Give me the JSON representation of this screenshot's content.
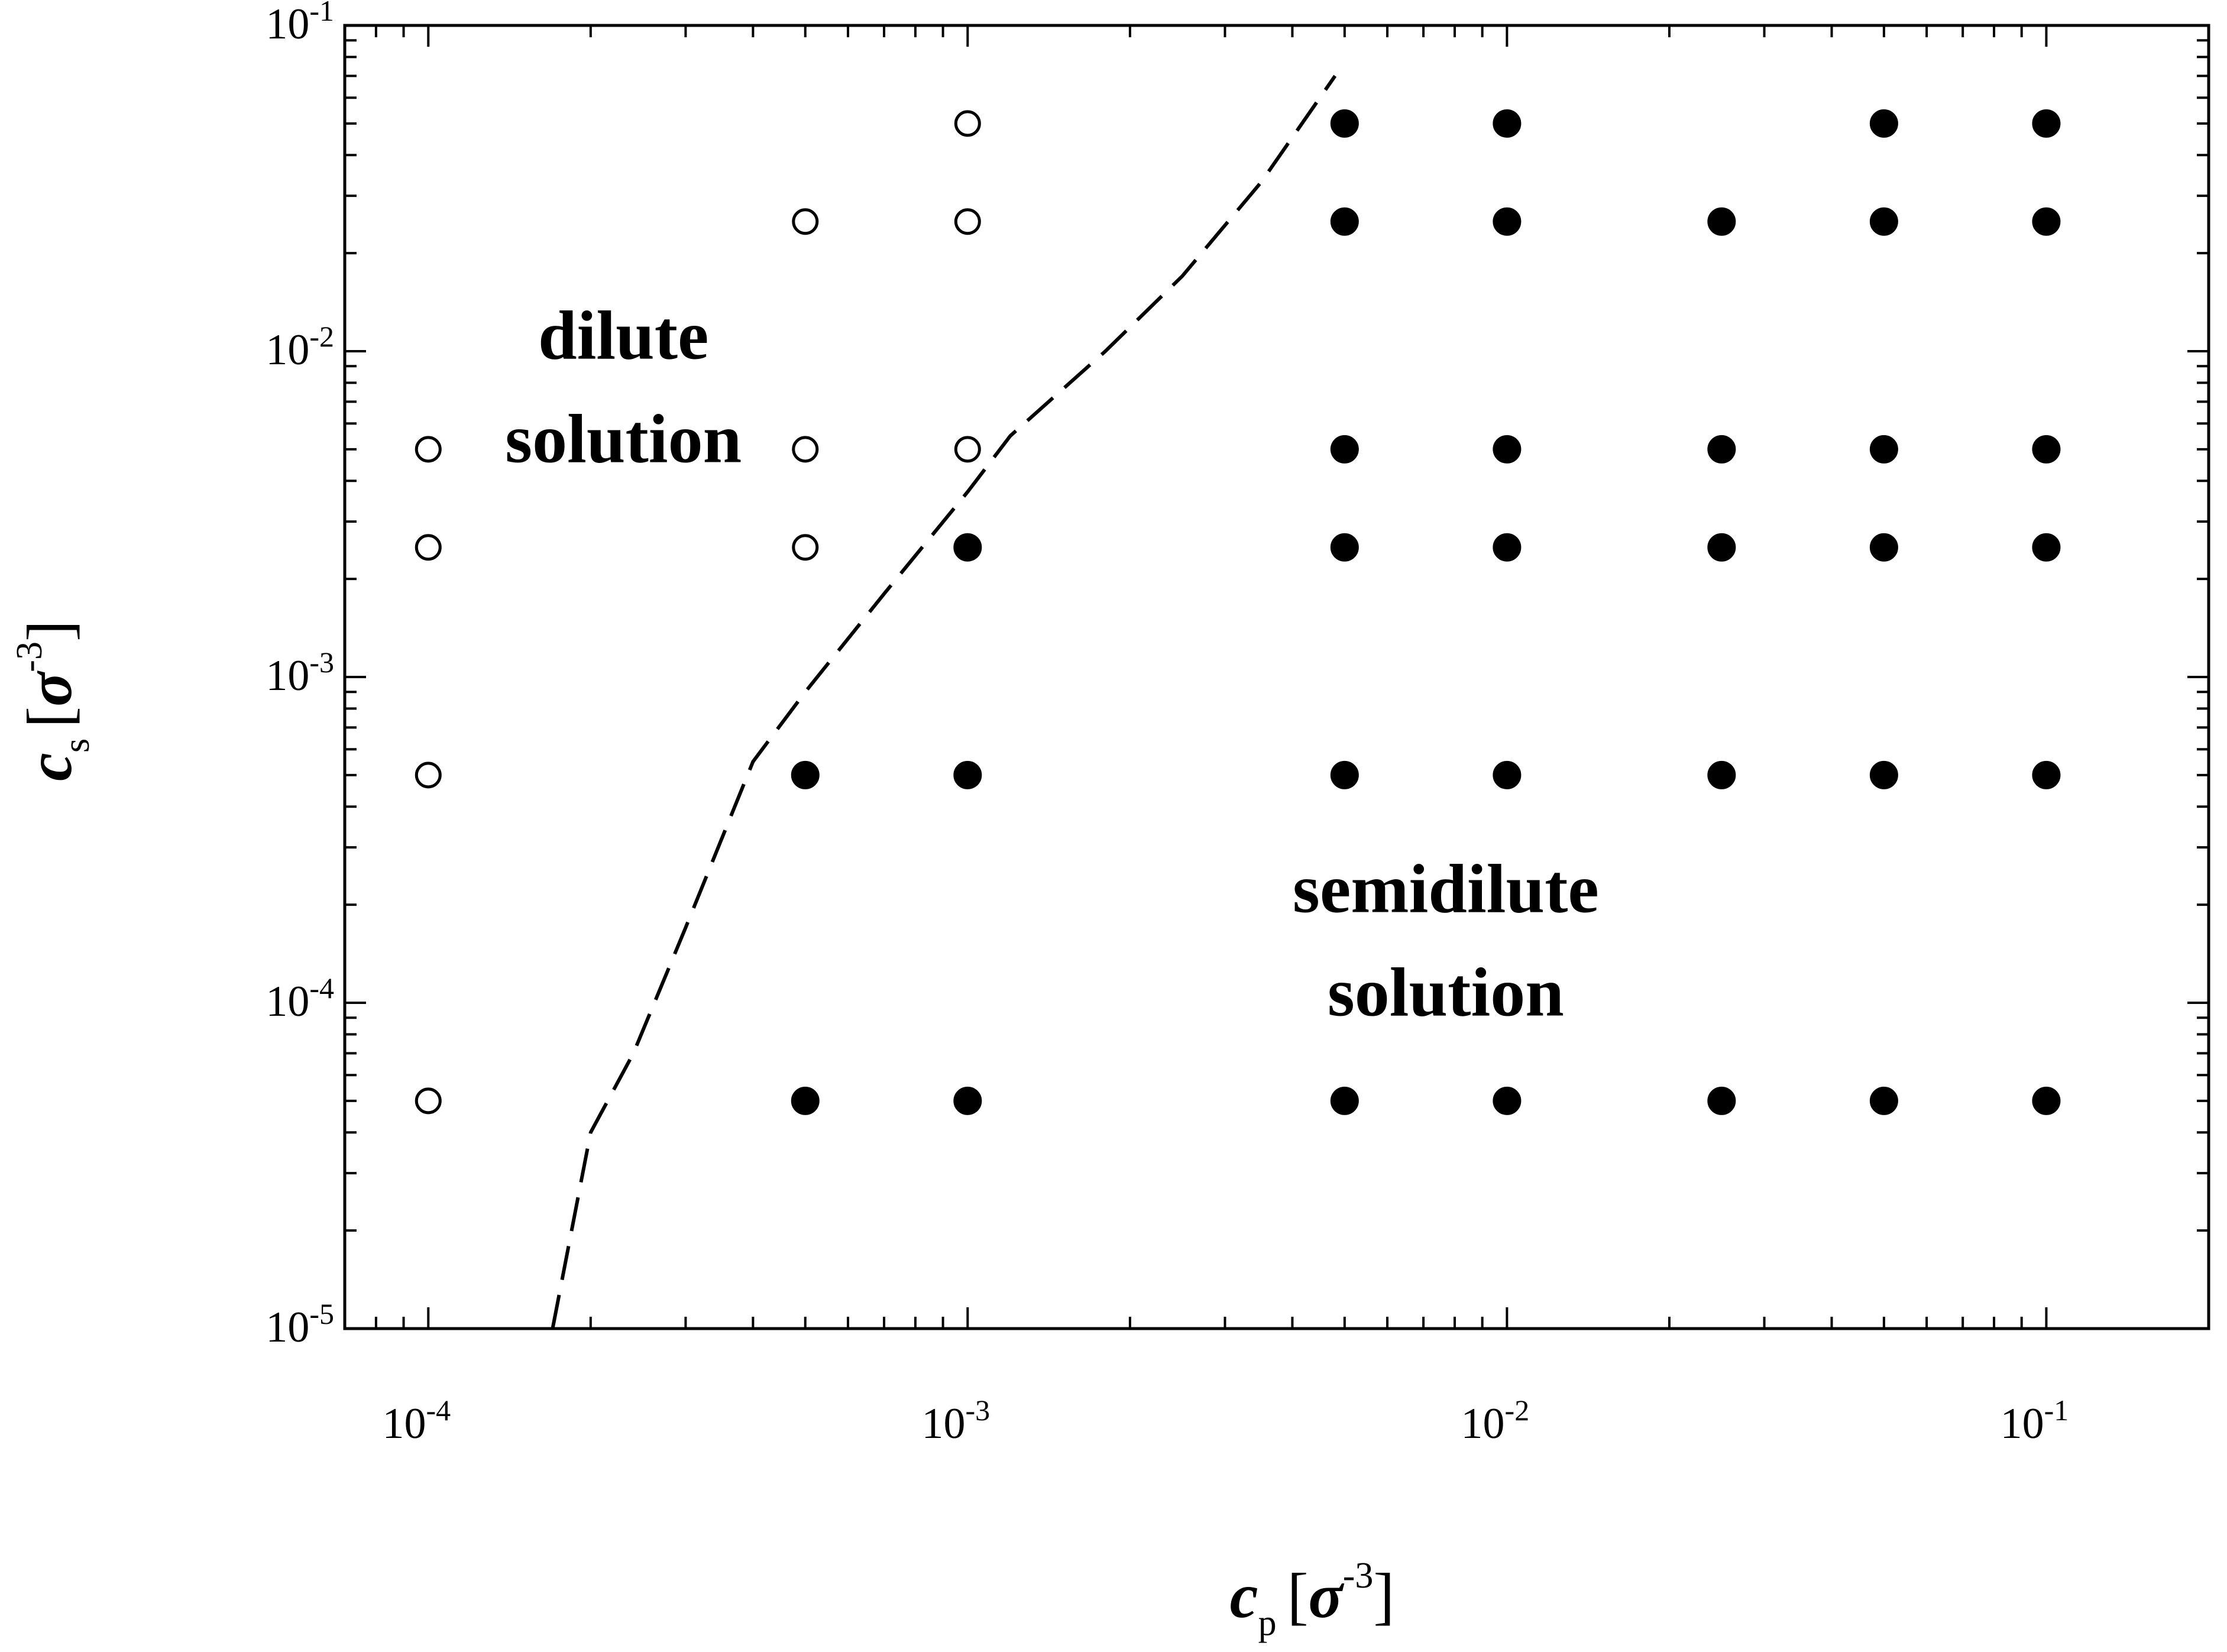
{
  "chart_data": {
    "type": "scatter",
    "x_scale": "log",
    "y_scale": "log",
    "xlim": [
      7e-05,
      0.2
    ],
    "ylim": [
      1e-05,
      0.1
    ],
    "grid": false,
    "x_ticks": [
      {
        "value": 0.0001,
        "base": "10",
        "exp": "-4"
      },
      {
        "value": 0.001,
        "base": "10",
        "exp": "-3"
      },
      {
        "value": 0.01,
        "base": "10",
        "exp": "-2"
      },
      {
        "value": 0.1,
        "base": "10",
        "exp": "-1"
      }
    ],
    "y_ticks": [
      {
        "value": 1e-05,
        "base": "10",
        "exp": "-5"
      },
      {
        "value": 0.0001,
        "base": "10",
        "exp": "-4"
      },
      {
        "value": 0.001,
        "base": "10",
        "exp": "-3"
      },
      {
        "value": 0.01,
        "base": "10",
        "exp": "-2"
      },
      {
        "value": 0.1,
        "base": "10",
        "exp": "-1"
      }
    ],
    "xlabel": {
      "main": "c",
      "sub": "p",
      "unit_open": "[",
      "sigma": "σ",
      "exp": "-3",
      "unit_close": "]"
    },
    "ylabel": {
      "main": "c",
      "sub": "s",
      "unit_open": "[",
      "sigma": "σ",
      "exp": "-3",
      "unit_close": "]"
    },
    "annotations": [
      {
        "id": "dilute",
        "lines": [
          "dilute",
          "solution"
        ],
        "x": 0.00023,
        "y": 0.0095
      },
      {
        "id": "semidilute",
        "lines": [
          "semidilute",
          "solution"
        ],
        "x": 0.0077,
        "y": 0.00019
      }
    ],
    "series": [
      {
        "marker": "open-circle",
        "points": [
          [
            0.0001,
            0.005
          ],
          [
            0.0001,
            0.0025
          ],
          [
            0.0001,
            0.0005
          ],
          [
            0.0001,
            5e-05
          ],
          [
            0.0005,
            0.025
          ],
          [
            0.0005,
            0.005
          ],
          [
            0.0005,
            0.0025
          ],
          [
            0.001,
            0.05
          ],
          [
            0.001,
            0.025
          ],
          [
            0.001,
            0.005
          ]
        ]
      },
      {
        "marker": "filled-circle",
        "points": [
          [
            0.001,
            0.0025
          ],
          [
            0.0005,
            0.0005
          ],
          [
            0.001,
            0.0005
          ],
          [
            0.0005,
            5e-05
          ],
          [
            0.001,
            5e-05
          ],
          [
            0.005,
            0.05
          ],
          [
            0.01,
            0.05
          ],
          [
            0.05,
            0.05
          ],
          [
            0.1,
            0.05
          ],
          [
            0.005,
            0.025
          ],
          [
            0.01,
            0.025
          ],
          [
            0.025,
            0.025
          ],
          [
            0.05,
            0.025
          ],
          [
            0.1,
            0.025
          ],
          [
            0.005,
            0.005
          ],
          [
            0.01,
            0.005
          ],
          [
            0.025,
            0.005
          ],
          [
            0.05,
            0.005
          ],
          [
            0.1,
            0.005
          ],
          [
            0.005,
            0.0025
          ],
          [
            0.01,
            0.0025
          ],
          [
            0.025,
            0.0025
          ],
          [
            0.05,
            0.0025
          ],
          [
            0.1,
            0.0025
          ],
          [
            0.005,
            0.0005
          ],
          [
            0.01,
            0.0005
          ],
          [
            0.025,
            0.0005
          ],
          [
            0.05,
            0.0005
          ],
          [
            0.1,
            0.0005
          ],
          [
            0.005,
            5e-05
          ],
          [
            0.01,
            5e-05
          ],
          [
            0.025,
            5e-05
          ],
          [
            0.05,
            5e-05
          ],
          [
            0.1,
            5e-05
          ]
        ]
      },
      {
        "marker": "dashed-line",
        "points": [
          [
            0.00017,
            1e-05
          ],
          [
            0.0002,
            4e-05
          ],
          [
            0.00024,
            7e-05
          ],
          [
            0.0003,
            0.00017
          ],
          [
            0.0004,
            0.00055
          ],
          [
            0.0005,
            0.0009
          ],
          [
            0.0007,
            0.0018
          ],
          [
            0.001,
            0.0037
          ],
          [
            0.0012,
            0.0055
          ],
          [
            0.0018,
            0.01
          ],
          [
            0.0025,
            0.017
          ],
          [
            0.0035,
            0.033
          ],
          [
            0.0048,
            0.07
          ]
        ]
      }
    ]
  }
}
